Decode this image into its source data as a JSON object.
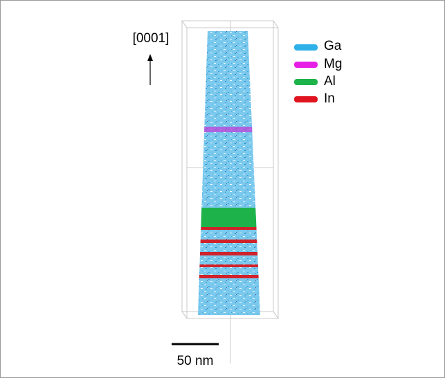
{
  "axis_label": "[0001]",
  "legend": {
    "items": [
      {
        "label": "Ga"
      },
      {
        "label": "Mg"
      },
      {
        "label": "Al"
      },
      {
        "label": "In"
      }
    ]
  },
  "scale_bar": {
    "label": "50 nm"
  }
}
